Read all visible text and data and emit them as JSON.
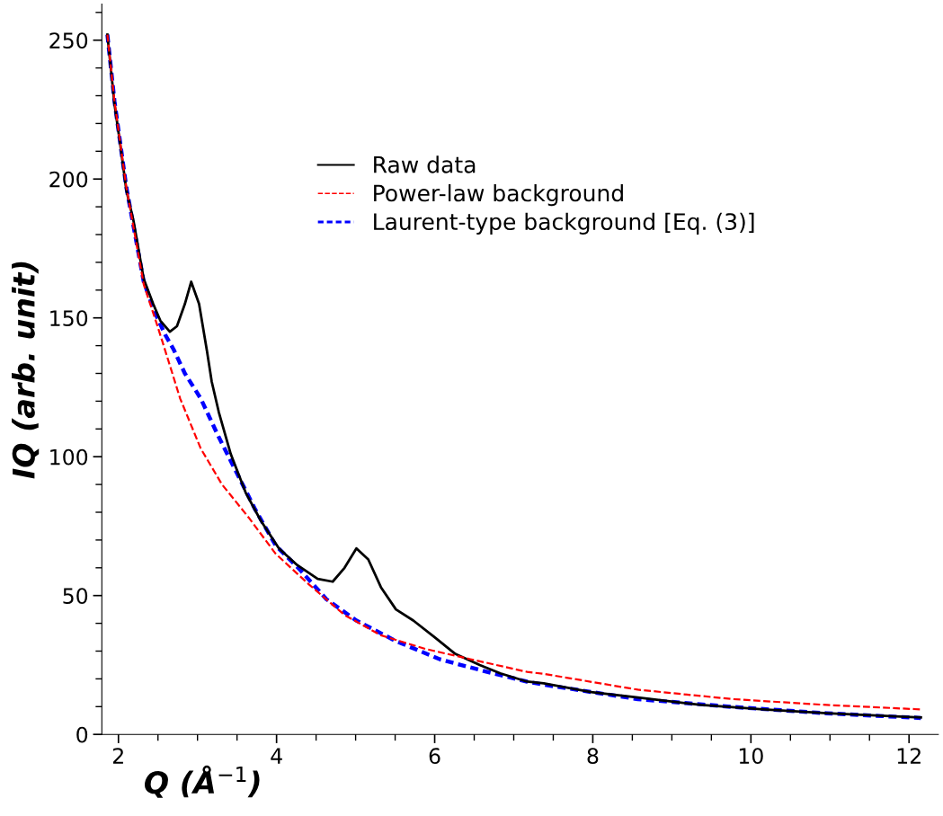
{
  "chart_data": {
    "type": "line",
    "xlabel": "Q (Å$^{−1}$)",
    "ylabel": "IQ (arb. unit)",
    "xlim": [
      1.79,
      12.37
    ],
    "ylim": [
      0,
      263
    ],
    "xticks": [
      2,
      4,
      6,
      8,
      10,
      12
    ],
    "yticks": [
      0,
      50,
      100,
      150,
      200,
      250
    ],
    "grid": false,
    "legend": "top",
    "marker": "none",
    "series": [
      {
        "name": "Raw data",
        "color": "#000000",
        "line_style": "solid",
        "x": [
          1.86,
          1.95,
          2.02,
          2.1,
          2.19,
          2.32,
          2.44,
          2.53,
          2.65,
          2.74,
          2.84,
          2.92,
          3.02,
          3.12,
          3.18,
          3.27,
          3.42,
          3.61,
          3.8,
          4.03,
          4.26,
          4.52,
          4.71,
          4.86,
          5.01,
          5.16,
          5.32,
          5.51,
          5.73,
          6.0,
          6.26,
          6.57,
          6.83,
          7.17,
          7.38,
          7.98,
          8.57,
          9.37,
          10.16,
          10.96,
          12.15
        ],
        "values": [
          252,
          227,
          213,
          196,
          185,
          164,
          155,
          149,
          145,
          147,
          155,
          163,
          155,
          138,
          127,
          116,
          101,
          87,
          77,
          67,
          61,
          56,
          55,
          60,
          67,
          63,
          53,
          45,
          41,
          35,
          29,
          25,
          22,
          19,
          18.4,
          15.2,
          13.3,
          10.6,
          9.0,
          7.6,
          6.1
        ]
      },
      {
        "name": "Power-law background",
        "color": "#ff0000",
        "line_style": "dashed",
        "x": [
          1.86,
          1.95,
          2.1,
          2.32,
          2.46,
          2.55,
          2.66,
          2.78,
          3.04,
          3.31,
          3.65,
          3.99,
          4.41,
          4.86,
          5.32,
          5.88,
          6.45,
          7.17,
          7.38,
          8.57,
          9.77,
          10.96,
          12.15
        ],
        "values": [
          252,
          228,
          197,
          162,
          150,
          142,
          132,
          121,
          103,
          90,
          78,
          65,
          54,
          43,
          35.7,
          30.8,
          27.1,
          22.5,
          21.8,
          16.1,
          12.7,
          10.6,
          9.0
        ]
      },
      {
        "name": "Laurent-type background [Eq. (3)]",
        "color": "#0000ff",
        "line_style": "dotted",
        "x": [
          1.86,
          1.95,
          2.1,
          2.32,
          2.46,
          2.59,
          2.7,
          2.84,
          3.04,
          3.27,
          3.5,
          3.73,
          3.99,
          4.29,
          4.63,
          5.01,
          5.51,
          6.07,
          6.64,
          7.17,
          7.38,
          8.57,
          9.77,
          10.96,
          12.15
        ],
        "values": [
          252,
          228,
          197,
          163,
          152,
          144,
          138.5,
          130,
          121,
          107,
          94,
          81,
          68,
          59.5,
          48.7,
          41,
          33.6,
          27,
          22.7,
          19,
          17.9,
          12.7,
          9.9,
          7.6,
          5.9
        ]
      }
    ]
  }
}
